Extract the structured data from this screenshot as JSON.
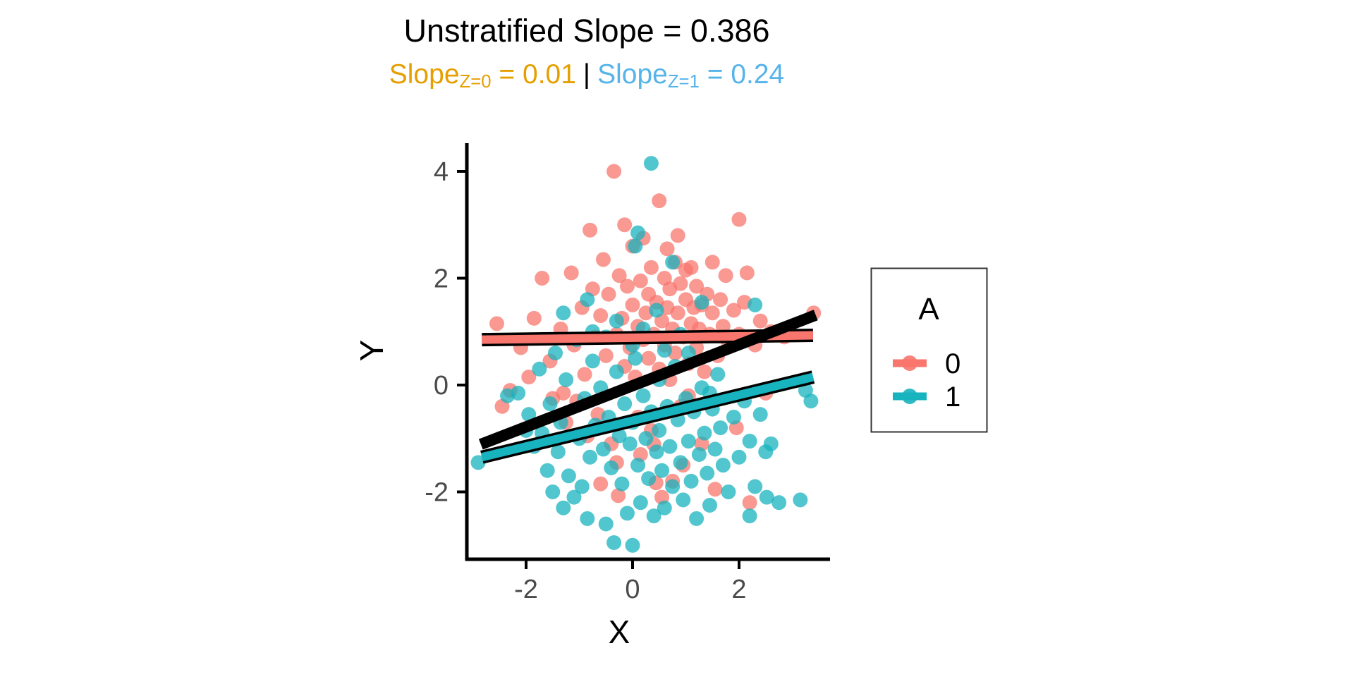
{
  "figure": {
    "title": "Unstratified Slope = 0.386",
    "subtitle": {
      "left": {
        "prefix": "Slope",
        "sub": "Z=0",
        "value": " = 0.01",
        "color": "#E69F00"
      },
      "separator": "|",
      "right": {
        "prefix": "Slope",
        "sub": "Z=1",
        "value": " = 0.24",
        "color": "#56B4E9"
      }
    }
  },
  "chart_data": {
    "type": "scatter",
    "title": "Unstratified Slope = 0.386",
    "subtitle_plain": "Slope[Z=0] = 0.01 | Slope[Z=1] = 0.24",
    "xlabel": "X",
    "ylabel": "Y",
    "xlim": [
      -3.1,
      3.7
    ],
    "ylim": [
      -3.25,
      4.5
    ],
    "x_ticks": [
      -2,
      0,
      2
    ],
    "y_ticks": [
      -2,
      0,
      2,
      4
    ],
    "grid": false,
    "background": "#ffffff",
    "axis_color": "#000000",
    "tick_label_color": "#4a4a4a",
    "point_radius": 10.5,
    "point_opacity": 0.75,
    "legend": {
      "title": "A",
      "position": "right",
      "items": [
        {
          "label": "0",
          "color": "#F8766D"
        },
        {
          "label": "1",
          "color": "#17B3BE"
        }
      ]
    },
    "regression_lines": [
      {
        "name": "A=0 stratum",
        "slope": 0.01,
        "color": "#F8766D",
        "outline": true,
        "width": 12,
        "x1": -2.83,
        "y1": 0.85,
        "x2": 3.39,
        "y2": 0.93
      },
      {
        "name": "A=1 stratum",
        "slope": 0.24,
        "color": "#17B3BE",
        "outline": true,
        "width": 12,
        "x1": -2.83,
        "y1": -1.35,
        "x2": 3.39,
        "y2": 0.15
      },
      {
        "name": "unstratified",
        "slope": 0.386,
        "color": "#000000",
        "outline": false,
        "width": 16,
        "x1": -2.85,
        "y1": -1.11,
        "x2": 3.44,
        "y2": 1.31
      }
    ],
    "series": [
      {
        "name": "0",
        "color": "#F8766D",
        "points": [
          [
            -2.55,
            1.15
          ],
          [
            -2.3,
            -0.1
          ],
          [
            -2.45,
            -0.4
          ],
          [
            -2.1,
            0.7
          ],
          [
            -1.95,
            0.15
          ],
          [
            -1.85,
            1.25
          ],
          [
            -1.7,
            2.0
          ],
          [
            -1.55,
            0.45
          ],
          [
            -1.5,
            -0.25
          ],
          [
            -1.35,
            1.05
          ],
          [
            -1.3,
            -0.15
          ],
          [
            -1.25,
            -0.7
          ],
          [
            -1.15,
            2.1
          ],
          [
            -1.1,
            0.75
          ],
          [
            -1.05,
            -0.3
          ],
          [
            -0.95,
            1.45
          ],
          [
            -0.9,
            0.2
          ],
          [
            -0.85,
            -0.95
          ],
          [
            -0.8,
            2.9
          ],
          [
            -0.75,
            1.8
          ],
          [
            -0.7,
            0.9
          ],
          [
            -0.65,
            -0.55
          ],
          [
            -0.6,
            1.3
          ],
          [
            -0.6,
            -1.85
          ],
          [
            -0.55,
            2.35
          ],
          [
            -0.5,
            0.55
          ],
          [
            -0.45,
            1.7
          ],
          [
            -0.4,
            -1.1
          ],
          [
            -0.35,
            4.0
          ],
          [
            -0.3,
            0.95
          ],
          [
            -0.3,
            -1.45
          ],
          [
            -0.25,
            2.05
          ],
          [
            -0.2,
            1.25
          ],
          [
            -0.27,
            -2.07
          ],
          [
            -0.15,
            0.35
          ],
          [
            -0.15,
            3.0
          ],
          [
            -0.1,
            1.85
          ],
          [
            -0.05,
            0.7
          ],
          [
            0.0,
            1.5
          ],
          [
            0.0,
            2.6
          ],
          [
            0.05,
            0.15
          ],
          [
            0.1,
            1.1
          ],
          [
            0.1,
            -0.6
          ],
          [
            0.15,
            1.95
          ],
          [
            0.15,
            -1.3
          ],
          [
            0.2,
            0.85
          ],
          [
            0.2,
            2.75
          ],
          [
            0.25,
            1.35
          ],
          [
            0.3,
            0.5
          ],
          [
            0.3,
            1.7
          ],
          [
            0.35,
            2.2
          ],
          [
            0.35,
            -0.85
          ],
          [
            0.4,
            0.95
          ],
          [
            0.4,
            -1.11
          ],
          [
            0.45,
            1.55
          ],
          [
            0.44,
            -1.83
          ],
          [
            0.5,
            3.45
          ],
          [
            0.5,
            0.3
          ],
          [
            0.55,
            1.2
          ],
          [
            0.55,
            -2.1
          ],
          [
            0.6,
            2.0
          ],
          [
            0.6,
            0.75
          ],
          [
            0.65,
            1.45
          ],
          [
            0.65,
            2.55
          ],
          [
            0.7,
            0.1
          ],
          [
            0.7,
            1.8
          ],
          [
            0.75,
            1.05
          ],
          [
            0.75,
            -1.8
          ],
          [
            0.8,
            2.3
          ],
          [
            0.8,
            0.6
          ],
          [
            0.85,
            1.35
          ],
          [
            0.85,
            2.8
          ],
          [
            0.9,
            1.9
          ],
          [
            0.9,
            -0.4
          ],
          [
            0.95,
            0.9
          ],
          [
            0.95,
            -1.5
          ],
          [
            1.0,
            1.6
          ],
          [
            1.0,
            2.15
          ],
          [
            1.05,
            0.4
          ],
          [
            1.05,
            -0.2
          ],
          [
            1.1,
            1.15
          ],
          [
            1.1,
            2.2
          ],
          [
            1.15,
            1.45
          ],
          [
            1.2,
            0.7
          ],
          [
            1.2,
            1.85
          ],
          [
            1.25,
            1.05
          ],
          [
            1.3,
            1.5
          ],
          [
            1.3,
            -1.1
          ],
          [
            1.35,
            0.25
          ],
          [
            1.4,
            1.7
          ],
          [
            1.45,
            0.95
          ],
          [
            1.5,
            1.35
          ],
          [
            1.5,
            2.3
          ],
          [
            1.55,
            -1.95
          ],
          [
            1.6,
            0.55
          ],
          [
            1.65,
            1.6
          ],
          [
            1.7,
            1.1
          ],
          [
            1.75,
            2.05
          ],
          [
            1.8,
            0.8
          ],
          [
            1.9,
            1.4
          ],
          [
            1.95,
            -0.8
          ],
          [
            2.0,
            3.1
          ],
          [
            2.0,
            0.95
          ],
          [
            2.1,
            1.55
          ],
          [
            2.15,
            2.1
          ],
          [
            2.2,
            -2.2
          ],
          [
            2.3,
            0.75
          ],
          [
            2.4,
            1.2
          ],
          [
            2.5,
            -0.15
          ],
          [
            2.6,
            1.0
          ],
          [
            2.85,
            0.9
          ],
          [
            3.4,
            1.35
          ]
        ]
      },
      {
        "name": "1",
        "color": "#17B3BE",
        "points": [
          [
            0.35,
            4.15
          ],
          [
            0.1,
            2.85
          ],
          [
            0.05,
            2.6
          ],
          [
            0.75,
            2.3
          ],
          [
            -0.85,
            1.6
          ],
          [
            1.3,
            1.55
          ],
          [
            2.3,
            1.5
          ],
          [
            -1.3,
            1.35
          ],
          [
            0.45,
            1.4
          ],
          [
            -0.3,
            1.2
          ],
          [
            -0.75,
            1.0
          ],
          [
            0.9,
            0.95
          ],
          [
            -0.5,
            0.9
          ],
          [
            -1.05,
            0.85
          ],
          [
            0.0,
            0.75
          ],
          [
            0.6,
            0.65
          ],
          [
            1.05,
            0.6
          ],
          [
            -1.45,
            0.6
          ],
          [
            0.05,
            0.5
          ],
          [
            -0.75,
            0.45
          ],
          [
            0.8,
            0.35
          ],
          [
            -1.75,
            0.3
          ],
          [
            -0.3,
            0.25
          ],
          [
            0.2,
            1.05
          ],
          [
            1.6,
            0.2
          ],
          [
            -1.25,
            0.1
          ],
          [
            0.5,
            0.1
          ],
          [
            -0.6,
            -0.05
          ],
          [
            1.3,
            -0.05
          ],
          [
            -2.35,
            -0.2
          ],
          [
            -2.15,
            -0.15
          ],
          [
            0.2,
            -0.2
          ],
          [
            1.0,
            -0.25
          ],
          [
            -0.9,
            -0.25
          ],
          [
            2.1,
            -0.3
          ],
          [
            -1.55,
            -0.35
          ],
          [
            -0.15,
            -0.35
          ],
          [
            0.35,
            -0.5
          ],
          [
            -1.95,
            -0.55
          ],
          [
            3.35,
            -0.3
          ],
          [
            3.25,
            -0.1
          ],
          [
            -0.45,
            -0.6
          ],
          [
            1.9,
            -0.6
          ],
          [
            0.65,
            -0.4
          ],
          [
            2.4,
            -0.55
          ],
          [
            0.85,
            -0.65
          ],
          [
            -1.35,
            -0.7
          ],
          [
            0.0,
            -0.7
          ],
          [
            -0.7,
            -0.75
          ],
          [
            1.65,
            -0.8
          ],
          [
            0.5,
            -0.85
          ],
          [
            -1.7,
            -0.9
          ],
          [
            1.35,
            -0.9
          ],
          [
            -0.25,
            -0.95
          ],
          [
            -1.0,
            -1.0
          ],
          [
            0.25,
            -1.0
          ],
          [
            -0.05,
            -1.1
          ],
          [
            2.2,
            -1.05
          ],
          [
            1.05,
            -1.05
          ],
          [
            -1.85,
            -1.15
          ],
          [
            0.7,
            -1.15
          ],
          [
            -0.55,
            -1.2
          ],
          [
            1.55,
            -1.2
          ],
          [
            -1.4,
            -1.25
          ],
          [
            0.45,
            -1.25
          ],
          [
            2.5,
            -1.25
          ],
          [
            1.25,
            -1.3
          ],
          [
            -0.8,
            -1.35
          ],
          [
            2.0,
            -1.35
          ],
          [
            -2.9,
            -1.45
          ],
          [
            0.9,
            -1.45
          ],
          [
            -0.4,
            -1.55
          ],
          [
            1.5,
            -0.45
          ],
          [
            0.1,
            -1.5
          ],
          [
            1.7,
            -1.5
          ],
          [
            -1.6,
            -1.6
          ],
          [
            0.55,
            -1.6
          ],
          [
            1.4,
            -1.65
          ],
          [
            -1.2,
            -1.7
          ],
          [
            0.3,
            -1.75
          ],
          [
            -0.2,
            -1.85
          ],
          [
            0.75,
            -1.9
          ],
          [
            -0.95,
            -1.9
          ],
          [
            1.8,
            -2.0
          ],
          [
            -1.5,
            -2.0
          ],
          [
            1.1,
            -1.8
          ],
          [
            -1.1,
            -2.1
          ],
          [
            0.95,
            -2.15
          ],
          [
            2.52,
            -2.1
          ],
          [
            3.15,
            -2.15
          ],
          [
            0.15,
            -2.2
          ],
          [
            2.75,
            -2.2
          ],
          [
            -1.3,
            -2.3
          ],
          [
            0.6,
            -2.3
          ],
          [
            1.45,
            -2.25
          ],
          [
            2.3,
            -1.9
          ],
          [
            -0.1,
            -2.4
          ],
          [
            0.4,
            -2.45
          ],
          [
            -0.85,
            -2.5
          ],
          [
            1.2,
            -2.5
          ],
          [
            -0.5,
            -2.6
          ],
          [
            0.0,
            -3.0
          ],
          [
            -0.35,
            -2.95
          ],
          [
            1.15,
            -0.5
          ],
          [
            1.45,
            -0.15
          ],
          [
            2.6,
            -1.1
          ],
          [
            -2.0,
            -0.85
          ],
          [
            2.2,
            -2.45
          ]
        ]
      }
    ]
  }
}
